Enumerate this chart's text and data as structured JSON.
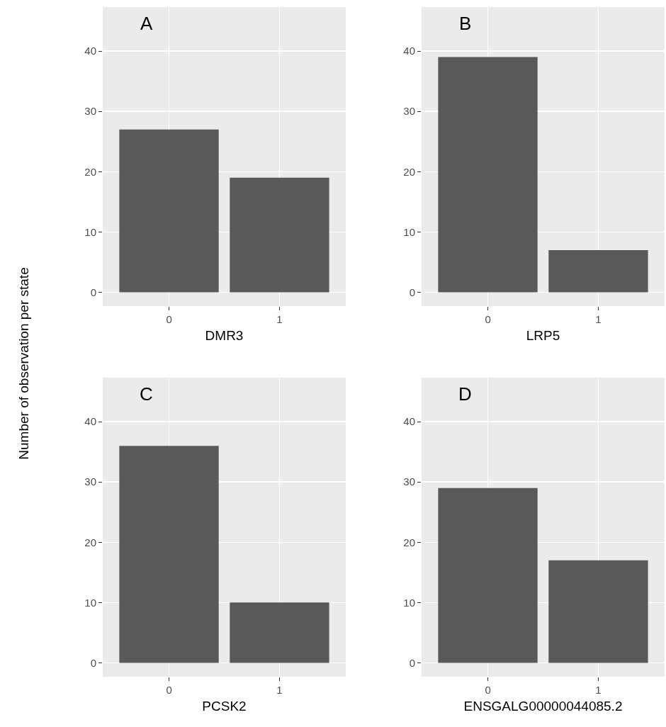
{
  "chart_data": [
    {
      "type": "bar",
      "categories": [
        "0",
        "1"
      ],
      "values": [
        27,
        19
      ],
      "color": "#595959",
      "xlabel": "DMR3",
      "ylabel": "Number of observation per state",
      "annotations": [
        "A"
      ],
      "ylim": [
        -2.3,
        47.3
      ],
      "yticks": [
        0,
        10,
        20,
        30,
        40
      ],
      "grid": true
    },
    {
      "type": "bar",
      "categories": [
        "0",
        "1"
      ],
      "values": [
        39,
        7
      ],
      "color": "#595959",
      "xlabel": "LRP5",
      "annotations": [
        "B"
      ],
      "ylim": [
        -2.3,
        47.3
      ],
      "yticks": [
        0,
        10,
        20,
        30,
        40
      ],
      "grid": true
    },
    {
      "type": "bar",
      "categories": [
        "0",
        "1"
      ],
      "values": [
        36,
        10
      ],
      "color": "#595959",
      "xlabel": "PCSK2",
      "annotations": [
        "C"
      ],
      "ylim": [
        -2.3,
        47.3
      ],
      "yticks": [
        0,
        10,
        20,
        30,
        40
      ],
      "grid": true
    },
    {
      "type": "bar",
      "categories": [
        "0",
        "1"
      ],
      "values": [
        29,
        17
      ],
      "color": "#595959",
      "xlabel": "ENSGALG00000044085.2",
      "annotations": [
        "D"
      ],
      "ylim": [
        -2.3,
        47.3
      ],
      "yticks": [
        0,
        10,
        20,
        30,
        40
      ],
      "grid": true
    }
  ]
}
